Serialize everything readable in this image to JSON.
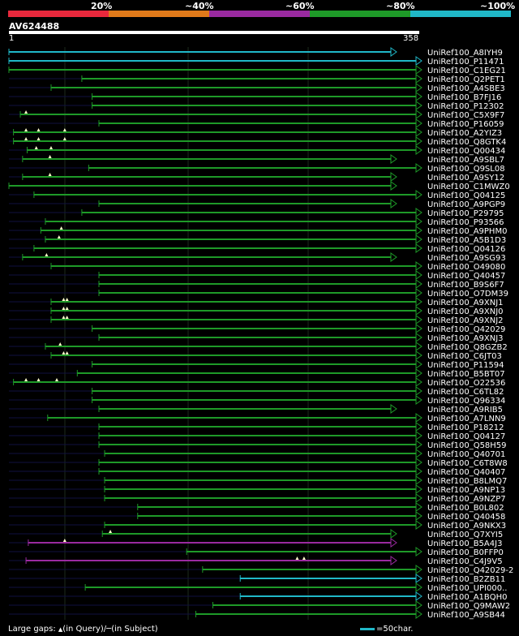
{
  "legend": {
    "segments": [
      {
        "label": "20%",
        "color": "#e8283c"
      },
      {
        "label": "~40%",
        "color": "#e07a1a"
      },
      {
        "label": "~60%",
        "color": "#9a2aa0"
      },
      {
        "label": "~80%",
        "color": "#1e9a28"
      },
      {
        "label": "~100%",
        "color": "#20b8c8"
      }
    ]
  },
  "query": {
    "name": "AV624488",
    "start": "1",
    "end": "358"
  },
  "colors": {
    "green": "#1e9a28",
    "cyan": "#20b8c8",
    "purple": "#9a2aa0",
    "faint": "#101040"
  },
  "hits": [
    {
      "name": "UniRef100_A8IYH9",
      "start": 1,
      "color": "cyan",
      "arrow": true,
      "gaps": []
    },
    {
      "name": "UniRef100_P11471",
      "start": 1,
      "color": "cyan",
      "arrow": false,
      "gaps": []
    },
    {
      "name": "UniRef100_C1EG21",
      "start": 1,
      "color": "green",
      "arrow": false,
      "gaps": []
    },
    {
      "name": "UniRef100_Q2PET1",
      "start": 65,
      "color": "green",
      "arrow": false,
      "gaps": []
    },
    {
      "name": "UniRef100_A4SBE3",
      "start": 38,
      "color": "green",
      "arrow": false,
      "gaps": []
    },
    {
      "name": "UniRef100_B7FJ16",
      "start": 74,
      "color": "green",
      "arrow": false,
      "gaps": []
    },
    {
      "name": "UniRef100_P12302",
      "start": 74,
      "color": "green",
      "arrow": false,
      "gaps": []
    },
    {
      "name": "UniRef100_C5X9F7",
      "start": 11,
      "color": "green",
      "arrow": false,
      "gaps": [
        16
      ]
    },
    {
      "name": "UniRef100_P16059",
      "start": 80,
      "color": "green",
      "arrow": false,
      "gaps": []
    },
    {
      "name": "UniRef100_A2YIZ3",
      "start": 5,
      "color": "green",
      "arrow": false,
      "gaps": [
        16,
        27,
        50
      ]
    },
    {
      "name": "UniRef100_Q8GTK4",
      "start": 5,
      "color": "green",
      "arrow": false,
      "gaps": [
        16,
        27,
        50
      ]
    },
    {
      "name": "UniRef100_Q00434",
      "start": 17,
      "color": "green",
      "arrow": false,
      "gaps": [
        25,
        38
      ]
    },
    {
      "name": "UniRef100_A9SBL7",
      "start": 13,
      "color": "green",
      "arrow": true,
      "gaps": [
        37
      ]
    },
    {
      "name": "UniRef100_Q9SL08",
      "start": 71,
      "color": "green",
      "arrow": false,
      "gaps": []
    },
    {
      "name": "UniRef100_A9SY12",
      "start": 13,
      "color": "green",
      "arrow": true,
      "gaps": [
        37
      ]
    },
    {
      "name": "UniRef100_C1MWZ0",
      "start": 1,
      "color": "green",
      "arrow": true,
      "gaps": []
    },
    {
      "name": "UniRef100_Q04125",
      "start": 23,
      "color": "green",
      "arrow": false,
      "gaps": []
    },
    {
      "name": "UniRef100_A9PGP9",
      "start": 80,
      "color": "green",
      "arrow": true,
      "gaps": []
    },
    {
      "name": "UniRef100_P29795",
      "start": 65,
      "color": "green",
      "arrow": false,
      "gaps": []
    },
    {
      "name": "UniRef100_P93566",
      "start": 33,
      "color": "green",
      "arrow": false,
      "gaps": []
    },
    {
      "name": "UniRef100_A9PHM0",
      "start": 29,
      "color": "green",
      "arrow": false,
      "gaps": [
        47
      ]
    },
    {
      "name": "UniRef100_A5B1D3",
      "start": 33,
      "color": "green",
      "arrow": false,
      "gaps": [
        45
      ]
    },
    {
      "name": "UniRef100_Q04126",
      "start": 23,
      "color": "green",
      "arrow": false,
      "gaps": []
    },
    {
      "name": "UniRef100_A9SG93",
      "start": 13,
      "color": "green",
      "arrow": true,
      "gaps": [
        34
      ]
    },
    {
      "name": "UniRef100_O49080",
      "start": 38,
      "color": "green",
      "arrow": false,
      "gaps": []
    },
    {
      "name": "UniRef100_Q40457",
      "start": 80,
      "color": "green",
      "arrow": false,
      "gaps": []
    },
    {
      "name": "UniRef100_B9S6F7",
      "start": 80,
      "color": "green",
      "arrow": false,
      "gaps": []
    },
    {
      "name": "UniRef100_O7DM39",
      "start": 80,
      "color": "green",
      "arrow": false,
      "gaps": []
    },
    {
      "name": "UniRef100_A9XNJ1",
      "start": 38,
      "color": "green",
      "arrow": false,
      "gaps": [
        49,
        52
      ]
    },
    {
      "name": "UniRef100_A9XNJ0",
      "start": 38,
      "color": "green",
      "arrow": false,
      "gaps": [
        49,
        52
      ]
    },
    {
      "name": "UniRef100_A9XNJ2",
      "start": 38,
      "color": "green",
      "arrow": false,
      "gaps": [
        49,
        52
      ]
    },
    {
      "name": "UniRef100_Q42029",
      "start": 74,
      "color": "green",
      "arrow": false,
      "gaps": []
    },
    {
      "name": "UniRef100_A9XNJ3",
      "start": 80,
      "color": "green",
      "arrow": false,
      "gaps": []
    },
    {
      "name": "UniRef100_Q8GZB2",
      "start": 33,
      "color": "green",
      "arrow": false,
      "gaps": [
        46
      ]
    },
    {
      "name": "UniRef100_C6JT03",
      "start": 38,
      "color": "green",
      "arrow": false,
      "gaps": [
        49,
        52
      ]
    },
    {
      "name": "UniRef100_P11594",
      "start": 74,
      "color": "green",
      "arrow": false,
      "gaps": []
    },
    {
      "name": "UniRef100_B5BT07",
      "start": 61,
      "color": "green",
      "arrow": false,
      "gaps": []
    },
    {
      "name": "UniRef100_O22536",
      "start": 5,
      "color": "green",
      "arrow": false,
      "gaps": [
        16,
        27,
        43
      ]
    },
    {
      "name": "UniRef100_C6TL82",
      "start": 74,
      "color": "green",
      "arrow": false,
      "gaps": []
    },
    {
      "name": "UniRef100_Q96334",
      "start": 74,
      "color": "green",
      "arrow": false,
      "gaps": []
    },
    {
      "name": "UniRef100_A9RIB5",
      "start": 80,
      "color": "green",
      "arrow": true,
      "gaps": []
    },
    {
      "name": "UniRef100_A7LNN9",
      "start": 35,
      "color": "green",
      "arrow": false,
      "gaps": []
    },
    {
      "name": "UniRef100_P18212",
      "start": 80,
      "color": "green",
      "arrow": false,
      "gaps": []
    },
    {
      "name": "UniRef100_Q04127",
      "start": 80,
      "color": "green",
      "arrow": false,
      "gaps": []
    },
    {
      "name": "UniRef100_Q58H59",
      "start": 80,
      "color": "green",
      "arrow": false,
      "gaps": []
    },
    {
      "name": "UniRef100_Q40701",
      "start": 85,
      "color": "green",
      "arrow": false,
      "gaps": []
    },
    {
      "name": "UniRef100_C6T8W8",
      "start": 80,
      "color": "green",
      "arrow": false,
      "gaps": []
    },
    {
      "name": "UniRef100_Q40407",
      "start": 80,
      "color": "green",
      "arrow": false,
      "gaps": []
    },
    {
      "name": "UniRef100_B8LMQ7",
      "start": 85,
      "color": "green",
      "arrow": false,
      "gaps": []
    },
    {
      "name": "UniRef100_A9NP13",
      "start": 85,
      "color": "green",
      "arrow": false,
      "gaps": []
    },
    {
      "name": "UniRef100_A9NZP7",
      "start": 85,
      "color": "green",
      "arrow": false,
      "gaps": []
    },
    {
      "name": "UniRef100_B0L802",
      "start": 114,
      "color": "green",
      "arrow": false,
      "gaps": []
    },
    {
      "name": "UniRef100_Q40458",
      "start": 114,
      "color": "green",
      "arrow": false,
      "gaps": []
    },
    {
      "name": "UniRef100_A9NKX3",
      "start": 85,
      "color": "green",
      "arrow": false,
      "gaps": []
    },
    {
      "name": "UniRef100_Q7XYI5",
      "start": 83,
      "color": "green",
      "arrow": true,
      "gaps": [
        90
      ]
    },
    {
      "name": "UniRef100_B5A4J3",
      "start": 18,
      "color": "purple",
      "arrow": true,
      "gaps": [
        50
      ]
    },
    {
      "name": "UniRef100_B0FFP0",
      "start": 157,
      "color": "green",
      "arrow": false,
      "gaps": []
    },
    {
      "name": "UniRef100_C4J9V5",
      "start": 16,
      "color": "purple",
      "arrow": true,
      "gaps": [
        254,
        260
      ]
    },
    {
      "name": "UniRef100_Q42029-2",
      "start": 171,
      "color": "green",
      "arrow": false,
      "gaps": []
    },
    {
      "name": "UniRef100_B2ZB11",
      "start": 204,
      "color": "cyan",
      "arrow": false,
      "gaps": []
    },
    {
      "name": "UniRef100_UPI000..",
      "start": 68,
      "color": "green",
      "arrow": false,
      "gaps": []
    },
    {
      "name": "UniRef100_A1BQH0",
      "start": 204,
      "color": "cyan",
      "arrow": false,
      "gaps": []
    },
    {
      "name": "UniRef100_Q9MAW2",
      "start": 180,
      "color": "green",
      "arrow": false,
      "gaps": []
    },
    {
      "name": "UniRef100_A9SB44",
      "start": 165,
      "color": "green",
      "arrow": false,
      "gaps": []
    }
  ],
  "footer": {
    "gaps_label": "Large gaps:",
    "query_symbol": "▲",
    "query_text": "(in Query)/",
    "subject_symbol": "─",
    "subject_text": "(in Subject)",
    "scale_text": "=50char."
  }
}
